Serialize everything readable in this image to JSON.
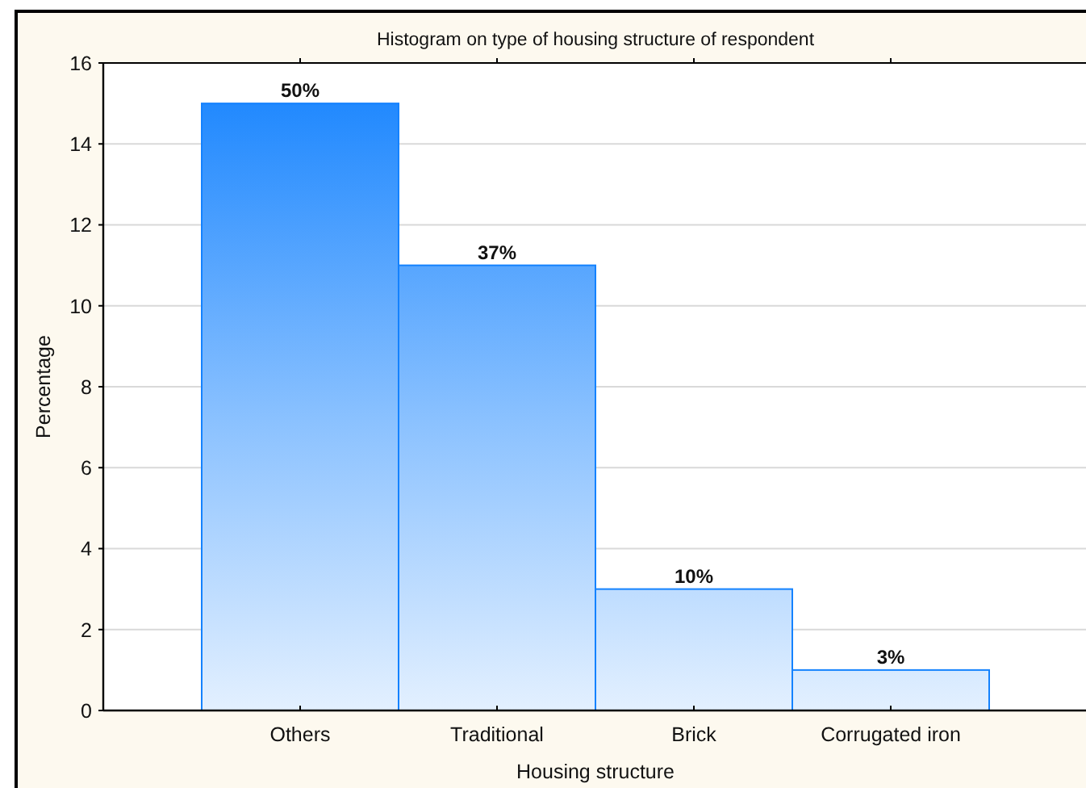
{
  "chart_data": {
    "type": "bar",
    "title": "Histogram on type of housing structure of respondent",
    "xlabel": "Housing structure",
    "ylabel": "Percentage",
    "categories": [
      "Others",
      "Traditional",
      "Brick",
      "Corrugated iron"
    ],
    "values": [
      15,
      11,
      3,
      1
    ],
    "color": "#1482fe",
    "annotations": [
      {
        "text": "50%",
        "x": "Others",
        "y": 15
      },
      {
        "text": "37%",
        "x": "Traditional",
        "y": 11
      },
      {
        "text": "10%",
        "x": "Brick",
        "y": 3
      },
      {
        "text": "3%",
        "x": "Corrugated iron",
        "y": 1
      }
    ],
    "ylim": [
      0,
      16
    ],
    "yticks": [
      0,
      2,
      4,
      6,
      8,
      10,
      12,
      14,
      16
    ],
    "grid": "y"
  }
}
